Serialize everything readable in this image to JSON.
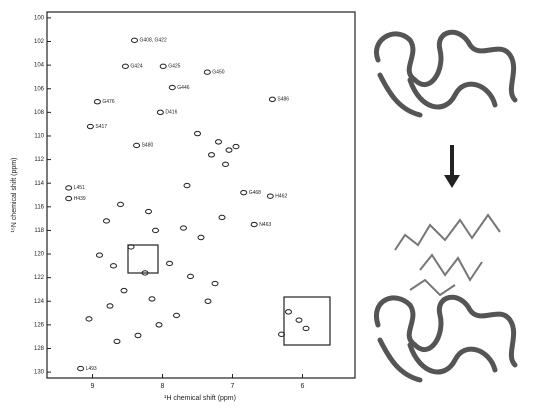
{
  "chart_data": {
    "type": "scatter",
    "x_label": "¹H chemical shift (ppm)",
    "y_label": "¹⁵N chemical shift (ppm)",
    "x": [
      8.4,
      8.53,
      7.99,
      7.36,
      7.86,
      6.43,
      8.93,
      9.03,
      8.03,
      8.37,
      9.34,
      9.34,
      6.84,
      6.46,
      6.69,
      9.17,
      7.2,
      7.05,
      7.5,
      7.3,
      6.95,
      7.1,
      8.6,
      8.2,
      8.8,
      8.1,
      7.7,
      7.45,
      8.45,
      8.9,
      8.7,
      8.25,
      7.9,
      7.6,
      7.25,
      8.55,
      8.15,
      8.75,
      7.35,
      7.8,
      8.05,
      6.2,
      6.05,
      5.95,
      6.3,
      8.65,
      8.35,
      9.05,
      7.15,
      7.65
    ],
    "values": [
      101.9,
      104.1,
      104.1,
      104.6,
      105.9,
      106.9,
      107.1,
      109.2,
      108.0,
      110.8,
      114.4,
      115.3,
      114.8,
      115.1,
      117.5,
      129.7,
      110.5,
      111.2,
      109.8,
      111.6,
      110.9,
      112.4,
      115.8,
      116.4,
      117.2,
      118.0,
      117.8,
      118.6,
      119.4,
      120.1,
      121.0,
      121.6,
      120.8,
      121.9,
      122.5,
      123.1,
      123.8,
      124.4,
      124.0,
      125.2,
      126.0,
      124.9,
      125.6,
      126.3,
      126.8,
      127.4,
      126.9,
      125.5,
      116.9,
      114.2
    ],
    "point_labels": [
      "G408, G422",
      "G424",
      "G425",
      "G450",
      "G446",
      "S486",
      "G476",
      "S417",
      "D416",
      "S480",
      "L451",
      "H439",
      "G468",
      "H462",
      "N463",
      "L493",
      null,
      null,
      null,
      null,
      null,
      null,
      null,
      null,
      null,
      null,
      null,
      null,
      null,
      null,
      null,
      null,
      null,
      null,
      null,
      null,
      null,
      null,
      null,
      null,
      null,
      null,
      null,
      null,
      null,
      null,
      null,
      null,
      null,
      null
    ],
    "xlim": [
      9.65,
      5.25
    ],
    "ylim": [
      99.5,
      130.5
    ],
    "xticks": [
      9,
      8,
      7,
      6
    ],
    "yticks": [
      100,
      102,
      104,
      106,
      108,
      110,
      112,
      114,
      116,
      118,
      120,
      122,
      124,
      126,
      128,
      130
    ],
    "color": "#222222"
  }
}
